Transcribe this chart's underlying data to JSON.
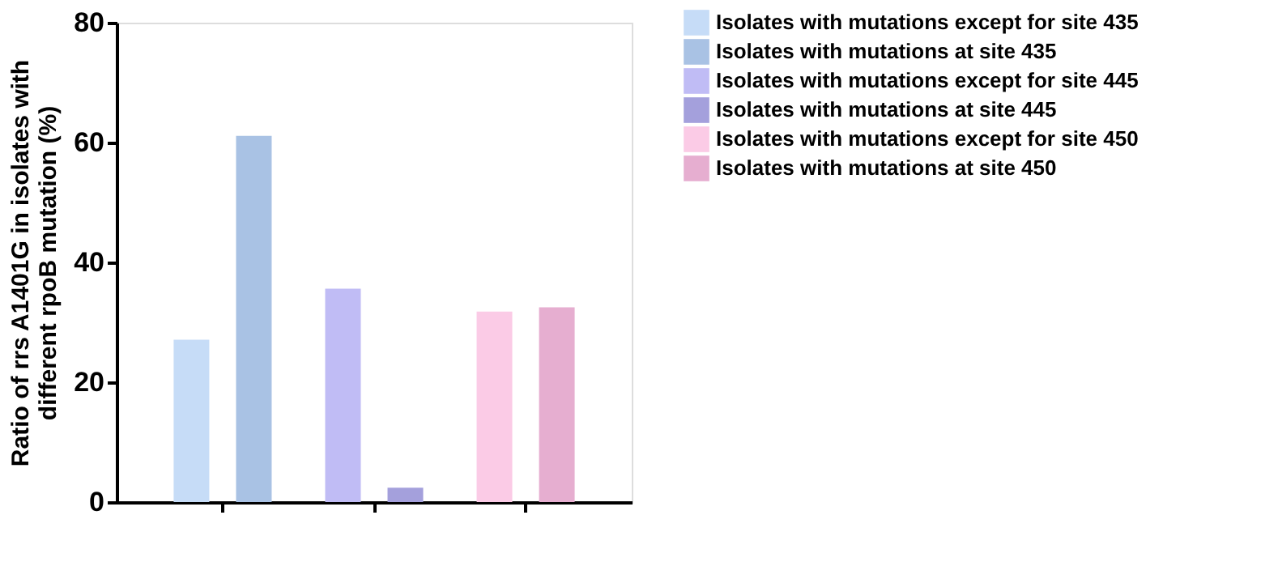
{
  "chart_data": {
    "type": "bar",
    "ylabel": "Ratio of rrs A1401G in isolates with different rpoB mutation (%)",
    "categories": [
      null,
      null,
      null
    ],
    "series": [
      {
        "name": "Isolates with mutations except for site 435",
        "color": "#c6dcf7",
        "values": [
          27.1,
          null,
          null
        ]
      },
      {
        "name": "Isolates with mutations at site 435",
        "color": "#a9c2e4",
        "values": [
          61.1,
          null,
          null
        ]
      },
      {
        "name": "Isolates with mutations except for site 445",
        "color": "#c0bcf5",
        "values": [
          null,
          35.6,
          null
        ]
      },
      {
        "name": "Isolates with mutations at site 445",
        "color": "#a4a0dc",
        "values": [
          null,
          2.4,
          null
        ]
      },
      {
        "name": "Isolates with mutations except for site 450",
        "color": "#fbcbe6",
        "values": [
          null,
          null,
          31.8
        ]
      },
      {
        "name": "Isolates with mutations at site 450",
        "color": "#e6aed0",
        "values": [
          null,
          null,
          32.5
        ]
      }
    ],
    "ylim": [
      0,
      80
    ],
    "yticks": [
      0,
      20,
      40,
      60,
      80
    ],
    "grid": false,
    "legend": "top right"
  }
}
